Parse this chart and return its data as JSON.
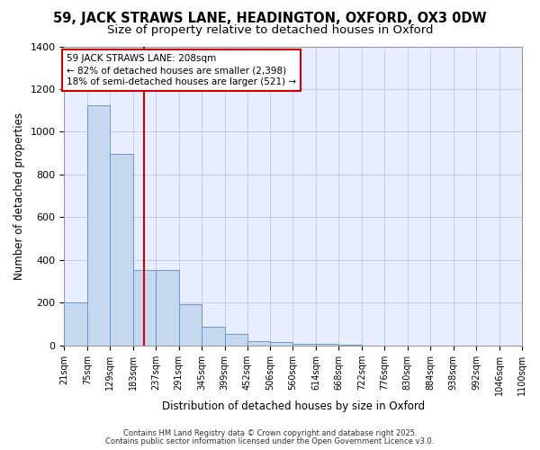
{
  "title1": "59, JACK STRAWS LANE, HEADINGTON, OXFORD, OX3 0DW",
  "title2": "Size of property relative to detached houses in Oxford",
  "xlabel": "Distribution of detached houses by size in Oxford",
  "ylabel": "Number of detached properties",
  "bar_edges": [
    21,
    75,
    129,
    183,
    237,
    291,
    345,
    399,
    452,
    506,
    560,
    614,
    668,
    722,
    776,
    830,
    884,
    938,
    992,
    1046,
    1100
  ],
  "bar_heights": [
    200,
    1125,
    895,
    355,
    355,
    195,
    90,
    55,
    22,
    15,
    10,
    10,
    5,
    0,
    0,
    0,
    0,
    0,
    0,
    0,
    0
  ],
  "bar_color": "#c5d8f0",
  "bar_edgecolor": "#6699cc",
  "property_line_x": 208,
  "property_line_color": "#cc0000",
  "annotation_text": "59 JACK STRAWS LANE: 208sqm\n← 82% of detached houses are smaller (2,398)\n18% of semi-detached houses are larger (521) →",
  "annotation_box_color": "#ffffff",
  "annotation_box_edgecolor": "#cc0000",
  "ylim": [
    0,
    1400
  ],
  "yticks": [
    0,
    200,
    400,
    600,
    800,
    1000,
    1200,
    1400
  ],
  "background_color": "#ffffff",
  "plot_background": "#e8eeff",
  "grid_color": "#c0c8e0",
  "footer1": "Contains HM Land Registry data © Crown copyright and database right 2025.",
  "footer2": "Contains public sector information licensed under the Open Government Licence v3.0.",
  "title1_fontsize": 10.5,
  "title2_fontsize": 9.5,
  "tick_label_fontsize": 7,
  "ylabel_fontsize": 8.5,
  "xlabel_fontsize": 8.5,
  "footer_fontsize": 6,
  "annotation_fontsize": 7.5
}
